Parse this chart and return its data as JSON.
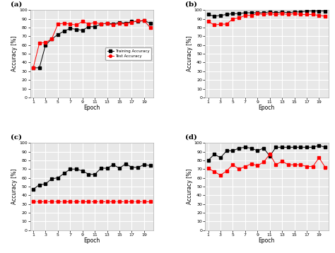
{
  "epochs": [
    1,
    2,
    3,
    4,
    5,
    6,
    7,
    8,
    9,
    10,
    11,
    12,
    13,
    14,
    15,
    16,
    17,
    18,
    19,
    20
  ],
  "a_train": [
    34,
    34,
    60,
    67,
    72,
    76,
    79,
    78,
    77,
    81,
    81,
    84,
    85,
    84,
    86,
    85,
    87,
    87,
    88,
    85
  ],
  "a_test": [
    34,
    62,
    63,
    67,
    84,
    85,
    84,
    83,
    87,
    84,
    86,
    84,
    85,
    83,
    85,
    84,
    86,
    88,
    88,
    80
  ],
  "b_train": [
    95,
    93,
    94,
    95,
    96,
    96,
    97,
    97,
    97,
    97,
    98,
    97,
    98,
    97,
    98,
    98,
    99,
    99,
    99,
    99
  ],
  "b_test": [
    87,
    83,
    84,
    84,
    90,
    91,
    94,
    94,
    96,
    95,
    96,
    95,
    96,
    95,
    96,
    95,
    95,
    95,
    94,
    93
  ],
  "c_train": [
    47,
    52,
    53,
    59,
    60,
    65,
    70,
    70,
    68,
    64,
    64,
    71,
    71,
    75,
    71,
    76,
    72,
    72,
    75,
    74
  ],
  "c_test": [
    33,
    33,
    33,
    33,
    33,
    33,
    33,
    33,
    33,
    33,
    33,
    33,
    33,
    33,
    33,
    33,
    33,
    33,
    33,
    33
  ],
  "d_train": [
    80,
    87,
    83,
    91,
    91,
    94,
    95,
    94,
    91,
    94,
    85,
    95,
    95,
    95,
    95,
    95,
    95,
    95,
    97,
    95
  ],
  "d_test": [
    71,
    67,
    63,
    68,
    75,
    70,
    73,
    76,
    74,
    78,
    87,
    75,
    79,
    75,
    75,
    75,
    73,
    73,
    83,
    72
  ],
  "train_color": "black",
  "test_color": "red",
  "train_marker": "s",
  "test_marker": "s",
  "ylabel": "Accuracy [%]",
  "xlabel": "Epoch",
  "ylim": [
    0,
    100
  ],
  "yticks": [
    0,
    10,
    20,
    30,
    40,
    50,
    60,
    70,
    80,
    90,
    100
  ],
  "xticks": [
    1,
    3,
    5,
    7,
    9,
    11,
    13,
    15,
    17,
    19
  ],
  "background_color": "#e8e8e8",
  "grid_color": "white",
  "legend_labels": [
    "Training Accuracy",
    "Test Accuracy"
  ]
}
